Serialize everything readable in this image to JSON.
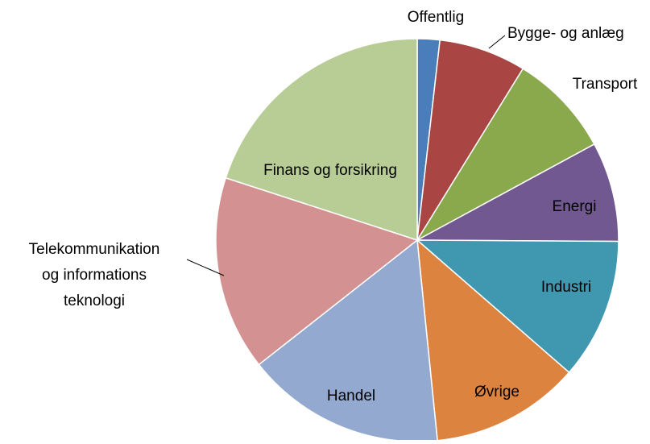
{
  "chart_data": {
    "type": "pie",
    "categories": [
      "Offentlig",
      "Bygge- og anlæg",
      "Transport",
      "Energi",
      "Industri",
      "Øvrige",
      "Handel",
      "Telekommunikation\nog informations\nteknologi",
      "Finans og forsikring"
    ],
    "values": [
      1.8,
      7,
      8.3,
      8,
      11.3,
      12,
      16,
      15.6,
      20
    ],
    "colors": [
      "#4a7ebb",
      "#a94543",
      "#8aa84c",
      "#725891",
      "#3f97b0",
      "#dc8340",
      "#94a9d0",
      "#d39291",
      "#b8cd96"
    ]
  }
}
